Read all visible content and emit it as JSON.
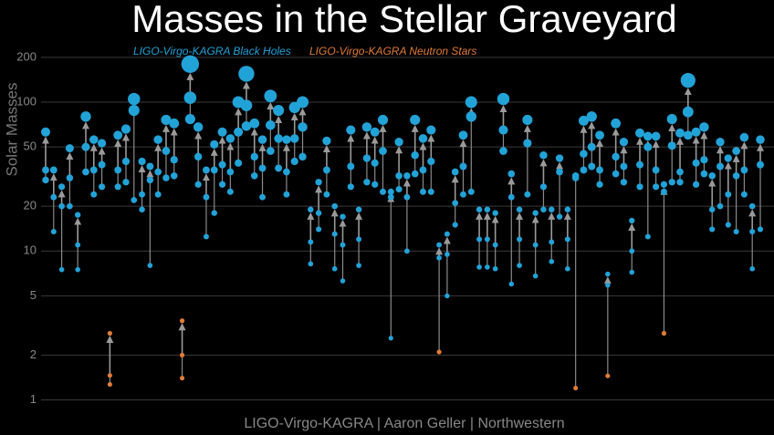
{
  "chart_data": {
    "type": "mergers",
    "title": "Masses in the Stellar Graveyard",
    "y_label": "Solar Masses",
    "footer": "LIGO-Virgo-KAGRA | Aaron Geller | Northwestern",
    "log_y": true,
    "grid": true,
    "ylim": [
      0.9,
      280
    ],
    "yticks": [
      1,
      2,
      5,
      10,
      20,
      50,
      100,
      200
    ],
    "series": [
      {
        "name": "LIGO-Virgo-KAGRA Black Holes",
        "color": "#22a3d8"
      },
      {
        "name": "LIGO-Virgo-KAGRA Neutron Stars",
        "color": "#e07b39"
      }
    ],
    "events": [
      {
        "masses": [
          35,
          30,
          63
        ]
      },
      {
        "masses": [
          23,
          13.5,
          35
        ]
      },
      {
        "masses": [
          20,
          7.5,
          27
        ]
      },
      {
        "masses": [
          31,
          20,
          49
        ]
      },
      {
        "masses": [
          11,
          7.5,
          17.5
        ]
      },
      {
        "masses": [
          50,
          34,
          80
        ]
      },
      {
        "masses": [
          35,
          24,
          56
        ]
      },
      {
        "masses": [
          38,
          27,
          53
        ]
      },
      {
        "masses": [
          1.46,
          1.27,
          2.8
        ],
        "series": [
          1,
          1,
          1
        ]
      },
      {
        "masses": [
          35,
          27,
          60
        ]
      },
      {
        "masses": [
          40,
          29,
          66
        ]
      },
      {
        "masses": [
          88,
          22,
          105
        ]
      },
      {
        "masses": [
          24,
          19,
          40
        ]
      },
      {
        "masses": [
          30,
          8,
          37
        ]
      },
      {
        "masses": [
          34,
          24,
          56
        ]
      },
      {
        "masses": [
          47,
          31,
          76
        ]
      },
      {
        "masses": [
          41,
          32,
          72
        ]
      },
      {
        "masses": [
          2.0,
          1.4,
          3.4
        ],
        "series": [
          1,
          1,
          1
        ]
      },
      {
        "masses": [
          107,
          77,
          180
        ]
      },
      {
        "masses": [
          43,
          28,
          68
        ]
      },
      {
        "masses": [
          23,
          12.5,
          35
        ]
      },
      {
        "masses": [
          35,
          18,
          52
        ]
      },
      {
        "masses": [
          38,
          28,
          63
        ]
      },
      {
        "masses": [
          34,
          25,
          57
        ]
      },
      {
        "masses": [
          63,
          39,
          100
        ]
      },
      {
        "masses": [
          95,
          69,
          155
        ]
      },
      {
        "masses": [
          43,
          32,
          72
        ]
      },
      {
        "masses": [
          36,
          23,
          56
        ]
      },
      {
        "masses": [
          70,
          47,
          110
        ]
      },
      {
        "masses": [
          57,
          36,
          88
        ]
      },
      {
        "masses": [
          34,
          24,
          56
        ]
      },
      {
        "masses": [
          57,
          40,
          92
        ]
      },
      {
        "masses": [
          68,
          43,
          100
        ]
      },
      {
        "masses": [
          11.5,
          8.2,
          19
        ]
      },
      {
        "masses": [
          18,
          14,
          29
        ]
      },
      {
        "masses": [
          35,
          24,
          55
        ]
      },
      {
        "masses": [
          13,
          7.6,
          20
        ]
      },
      {
        "masses": [
          11,
          6.3,
          17
        ]
      },
      {
        "masses": [
          37,
          27,
          65
        ]
      },
      {
        "masses": [
          12,
          8,
          19
        ]
      },
      {
        "masses": [
          42,
          29,
          68
        ]
      },
      {
        "masses": [
          39,
          28,
          63
        ]
      },
      {
        "masses": [
          47,
          25,
          76
        ]
      },
      {
        "masses": [
          23,
          2.6,
          25
        ]
      },
      {
        "masses": [
          32,
          26,
          54
        ]
      },
      {
        "masses": [
          23,
          10,
          32
        ]
      },
      {
        "masses": [
          44,
          33,
          76
        ]
      },
      {
        "masses": [
          35,
          25,
          57
        ]
      },
      {
        "masses": [
          40,
          25,
          65
        ]
      },
      {
        "masses": [
          9,
          2.1,
          11
        ],
        "series": [
          0,
          1,
          0
        ]
      },
      {
        "masses": [
          9.5,
          5,
          13
        ]
      },
      {
        "masses": [
          21,
          15,
          34
        ]
      },
      {
        "masses": [
          37,
          24,
          60
        ]
      },
      {
        "masses": [
          80,
          25,
          100
        ]
      },
      {
        "masses": [
          12,
          7.8,
          19
        ]
      },
      {
        "masses": [
          12,
          7.8,
          19
        ]
      },
      {
        "masses": [
          11,
          7.6,
          18
        ]
      },
      {
        "masses": [
          65,
          47,
          105
        ]
      },
      {
        "masses": [
          23,
          6,
          33
        ]
      },
      {
        "masses": [
          12,
          8,
          19
        ]
      },
      {
        "masses": [
          53,
          24,
          76
        ]
      },
      {
        "masses": [
          11,
          6.8,
          18
        ]
      },
      {
        "masses": [
          27,
          19,
          44
        ]
      },
      {
        "masses": [
          11.5,
          8.5,
          19
        ]
      },
      {
        "masses": [
          34,
          17,
          42
        ]
      },
      {
        "masses": [
          12,
          7.6,
          19
        ]
      },
      {
        "masses": [
          31,
          1.2,
          32
        ],
        "series": [
          0,
          1,
          0
        ]
      },
      {
        "masses": [
          45,
          35,
          75
        ]
      },
      {
        "masses": [
          50,
          37,
          80
        ]
      },
      {
        "masses": [
          35,
          28,
          60
        ]
      },
      {
        "masses": [
          5.9,
          1.45,
          7
        ],
        "series": [
          0,
          1,
          0
        ]
      },
      {
        "masses": [
          43,
          33,
          72
        ]
      },
      {
        "masses": [
          37,
          29,
          54
        ]
      },
      {
        "masses": [
          10,
          7.2,
          16
        ]
      },
      {
        "masses": [
          38,
          27,
          62
        ]
      },
      {
        "masses": [
          50,
          12.5,
          59
        ]
      },
      {
        "masses": [
          35,
          27,
          59
        ]
      },
      {
        "masses": [
          25,
          2.8,
          28
        ],
        "series": [
          0,
          1,
          0
        ]
      },
      {
        "masses": [
          51,
          29,
          77
        ]
      },
      {
        "masses": [
          34,
          29,
          62
        ]
      },
      {
        "masses": [
          86,
          60,
          140
        ]
      },
      {
        "masses": [
          39,
          28,
          63
        ]
      },
      {
        "masses": [
          41,
          33,
          68
        ]
      },
      {
        "masses": [
          19,
          14,
          32
        ]
      },
      {
        "masses": [
          37,
          20,
          54
        ]
      },
      {
        "masses": [
          24,
          15,
          42
        ]
      },
      {
        "masses": [
          32,
          13.5,
          47
        ]
      },
      {
        "masses": [
          35,
          24,
          58
        ]
      },
      {
        "masses": [
          13.5,
          7.6,
          20
        ]
      },
      {
        "masses": [
          38,
          14,
          56
        ]
      }
    ]
  }
}
